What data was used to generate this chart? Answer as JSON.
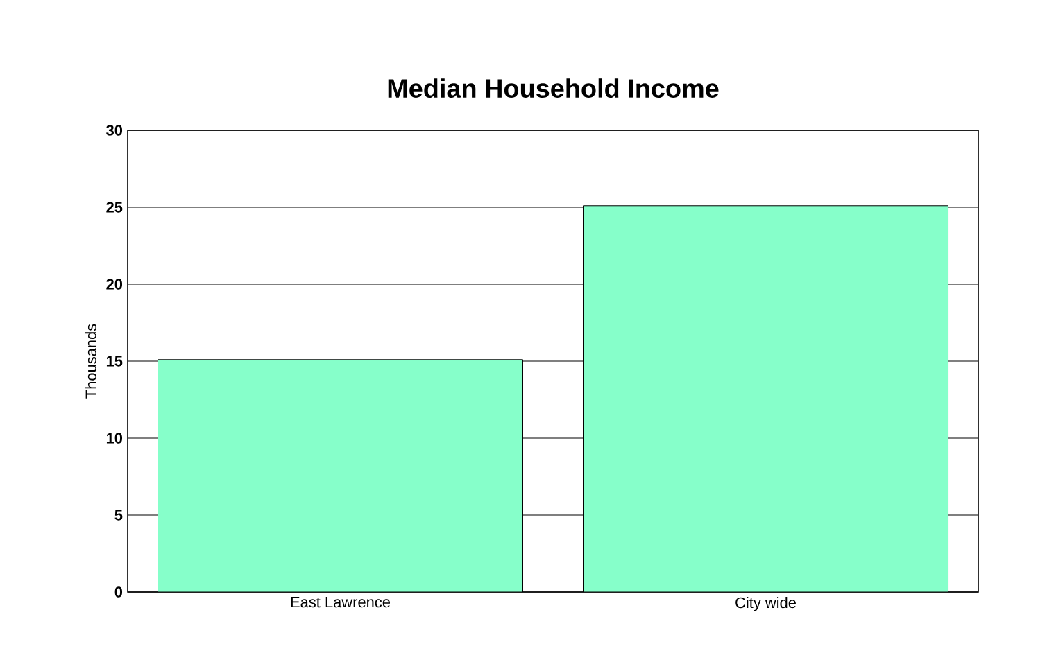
{
  "chart_data": {
    "type": "bar",
    "title": "Median Household Income",
    "ylabel": "Thousands",
    "categories": [
      "East Lawrence",
      "City wide"
    ],
    "values": [
      15.1,
      25.1
    ],
    "color": "#86ffca",
    "ylim": [
      0,
      30
    ],
    "yticks": [
      0,
      5,
      10,
      15,
      20,
      25,
      30
    ],
    "grid": "y"
  }
}
